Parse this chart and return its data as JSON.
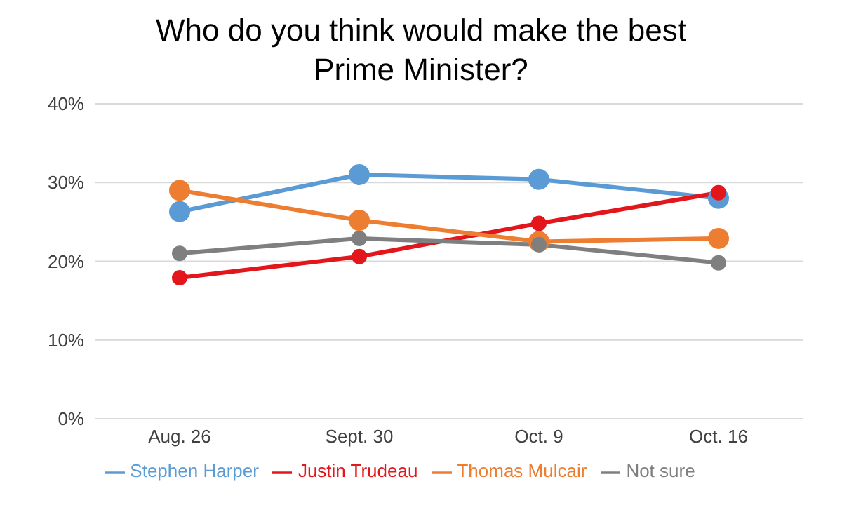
{
  "chart_data": {
    "type": "line",
    "title": "Who do you think would make the best Prime Minister?",
    "categories": [
      "Aug. 26",
      "Sept. 30",
      "Oct. 9",
      "Oct. 16"
    ],
    "series": [
      {
        "name": "Stephen Harper",
        "color": "#5b9bd5",
        "values": [
          26.3,
          31.0,
          30.4,
          28.0
        ]
      },
      {
        "name": "Justin Trudeau",
        "color": "#e3161b",
        "values": [
          17.9,
          20.6,
          24.8,
          28.7
        ]
      },
      {
        "name": "Thomas Mulcair",
        "color": "#ed7d31",
        "values": [
          29.0,
          25.2,
          22.5,
          22.9
        ]
      },
      {
        "name": "Not sure",
        "color": "#7f7f7f",
        "values": [
          21.0,
          22.9,
          22.1,
          19.8
        ]
      }
    ],
    "ylim": [
      0,
      40
    ],
    "yticks": [
      {
        "value": 0,
        "label": "0%"
      },
      {
        "value": 10,
        "label": "10%"
      },
      {
        "value": 20,
        "label": "20%"
      },
      {
        "value": 30,
        "label": "30%"
      },
      {
        "value": 40,
        "label": "40%"
      }
    ],
    "grid": "y",
    "legend": "bottom",
    "marker": "circle",
    "line_style": "solid"
  }
}
